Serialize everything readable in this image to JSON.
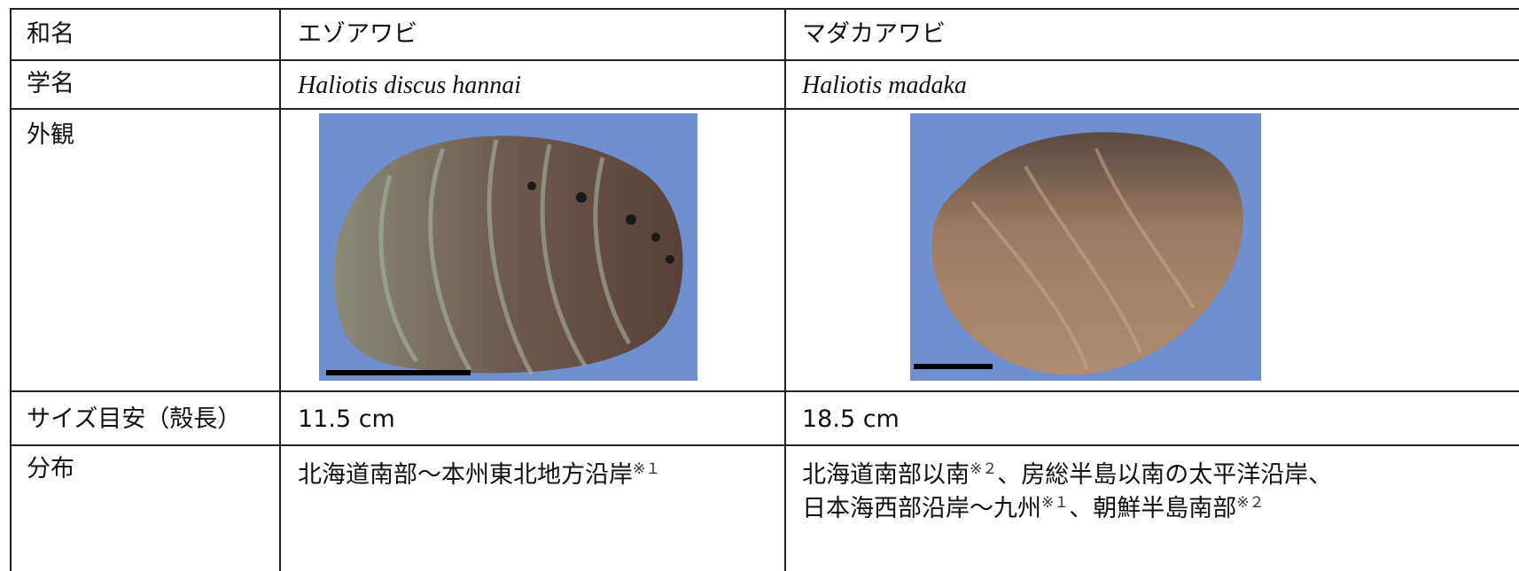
{
  "table": {
    "rows": [
      {
        "label": "和名",
        "cells": [
          "エゾアワビ",
          "マダカアワビ"
        ]
      },
      {
        "label": "学名",
        "cells": [
          "Haliotis discus hannai",
          "Haliotis madaka"
        ]
      },
      {
        "label": "外観"
      },
      {
        "label": "サイズ目安（殻長）",
        "cells": [
          "11.5 cm",
          "18.5 cm"
        ]
      },
      {
        "label": "分布",
        "cells": [
          [
            "北海道南部～本州東北地方沿岸",
            "※１"
          ],
          [
            "北海道南部以南",
            "※２",
            "、房総半島以南の太平洋沿岸、",
            "日本海西部沿岸～九州",
            "※１",
            "、朝鮮半島南部",
            "※２"
          ]
        ]
      }
    ]
  }
}
